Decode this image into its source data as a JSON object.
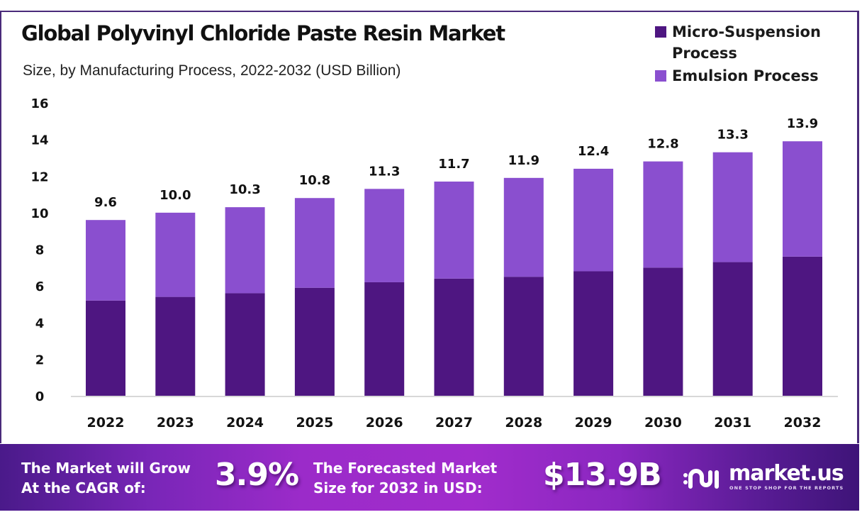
{
  "header": {
    "title": "Global Polyvinyl Chloride Paste Resin Market",
    "subtitle": "Size, by Manufacturing Process, 2022-2032 (USD Billion)"
  },
  "legend": [
    {
      "label": "Micro-Suspension Process",
      "color": "#4e1681"
    },
    {
      "label": "Emulsion Process",
      "color": "#8a4fcf"
    }
  ],
  "chart_data": {
    "type": "bar",
    "stacked": true,
    "title": "Global Polyvinyl Chloride Paste Resin Market",
    "subtitle": "Size, by Manufacturing Process, 2022-2032 (USD Billion)",
    "xlabel": "",
    "ylabel": "",
    "categories": [
      "2022",
      "2023",
      "2024",
      "2025",
      "2026",
      "2027",
      "2028",
      "2029",
      "2030",
      "2031",
      "2032"
    ],
    "series": [
      {
        "name": "Micro-Suspension Process",
        "color": "#4e1681",
        "values": [
          5.2,
          5.4,
          5.6,
          5.9,
          6.2,
          6.4,
          6.5,
          6.8,
          7.0,
          7.3,
          7.6
        ]
      },
      {
        "name": "Emulsion Process",
        "color": "#8a4fcf",
        "values": [
          4.4,
          4.6,
          4.7,
          4.9,
          5.1,
          5.3,
          5.4,
          5.6,
          5.8,
          6.0,
          6.3
        ]
      }
    ],
    "totals": [
      9.6,
      10.0,
      10.3,
      10.8,
      11.3,
      11.7,
      11.9,
      12.4,
      12.8,
      13.3,
      13.9
    ],
    "total_labels": [
      "9.6",
      "10.0",
      "10.3",
      "10.8",
      "11.3",
      "11.7",
      "11.9",
      "12.4",
      "12.8",
      "13.3",
      "13.9"
    ],
    "ylim": [
      0,
      16
    ],
    "yticks": [
      0,
      2,
      4,
      6,
      8,
      10,
      12,
      14,
      16
    ],
    "grid": false,
    "legend_position": "top-right"
  },
  "banner": {
    "cagr_text_line1": "The Market will Grow",
    "cagr_text_line2": "At the CAGR of:",
    "cagr_value": "3.9%",
    "forecast_text_line1": "The Forecasted Market",
    "forecast_text_line2": "Size for 2032 in USD:",
    "forecast_value": "$13.9B",
    "logo_name": "market.us",
    "logo_tagline": "ONE STOP SHOP FOR THE REPORTS",
    "logo_icon": "market-us-logo-icon"
  }
}
